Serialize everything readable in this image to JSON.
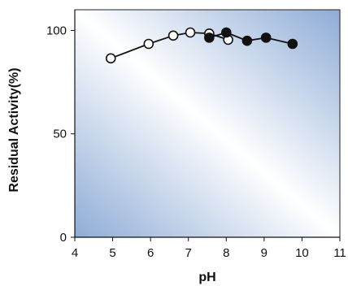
{
  "chart_data": {
    "type": "line",
    "title": "",
    "xlabel": "pH",
    "ylabel": "Residual Activity(%)",
    "xlim": [
      4,
      11
    ],
    "ylim": [
      0,
      110
    ],
    "x_ticks": [
      4,
      5,
      6,
      7,
      8,
      9,
      10,
      11
    ],
    "y_ticks": [
      0,
      50,
      100
    ],
    "x_tick_labels": [
      "4",
      "5",
      "6",
      "7",
      "8",
      "9",
      "10",
      "11"
    ],
    "y_tick_labels": [
      "0",
      "50",
      "100"
    ],
    "grid": false,
    "legend": "none",
    "series": [
      {
        "marker": "open-circle",
        "x": [
          4.95,
          5.95,
          6.6,
          7.05,
          7.55,
          8.05
        ],
        "y": [
          86.5,
          93.5,
          97.5,
          99,
          98.5,
          95.5
        ]
      },
      {
        "marker": "filled-circle",
        "x": [
          7.55,
          8.0,
          8.55,
          9.05,
          9.75
        ],
        "y": [
          96.5,
          99,
          95,
          96.5,
          93.5
        ]
      }
    ],
    "colors": {
      "line": "#111111",
      "marker_open_fill": "#ffffff",
      "marker_filled_fill": "#111111",
      "bg_gradient_light": "#ffffff",
      "bg_gradient_dark": "#8eacd6"
    }
  }
}
